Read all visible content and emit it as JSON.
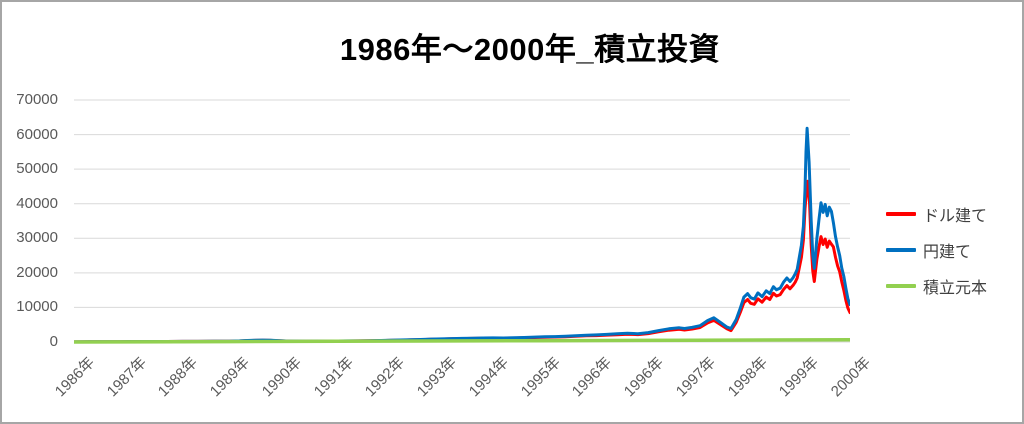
{
  "window": {
    "background": "#ffffff",
    "border_color": "#a6a6a6"
  },
  "chart_data": {
    "type": "line",
    "title": "1986年〜2000年_積立投資",
    "xlabel": "",
    "ylabel": "",
    "x_unit": "tick-index (0 = 1986年 ... 15 = 2000年)",
    "x_tick_labels": [
      "1986年",
      "1987年",
      "1988年",
      "1989年",
      "1990年",
      "1991年",
      "1992年",
      "1993年",
      "1994年",
      "1995年",
      "1996年",
      "1996年",
      "1997年",
      "1998年",
      "1999年",
      "2000年"
    ],
    "y_ticks": [
      0,
      10000,
      20000,
      30000,
      40000,
      50000,
      60000,
      70000
    ],
    "ylim": [
      0,
      70000
    ],
    "xlim": [
      0,
      15
    ],
    "grid": "horizontal",
    "legend_position": "right",
    "colors": {
      "grid": "#d9d9d9",
      "tick_text": "#595959",
      "legend_text": "#404040",
      "title_text": "#000000"
    },
    "series": [
      {
        "name": "ドル建て",
        "key": "usd",
        "color": "#ff0000",
        "stroke_width": 3,
        "points": [
          [
            0,
            35
          ],
          [
            0.3,
            55
          ],
          [
            0.6,
            75
          ],
          [
            0.9,
            95
          ],
          [
            1.2,
            112
          ],
          [
            1.5,
            130
          ],
          [
            1.8,
            145
          ],
          [
            2.1,
            160
          ],
          [
            2.4,
            172
          ],
          [
            2.7,
            190
          ],
          [
            3,
            218
          ],
          [
            3.2,
            295
          ],
          [
            3.35,
            400
          ],
          [
            3.5,
            465
          ],
          [
            3.65,
            500
          ],
          [
            3.8,
            455
          ],
          [
            3.95,
            380
          ],
          [
            4.1,
            280
          ],
          [
            4.3,
            238
          ],
          [
            4.5,
            220
          ],
          [
            4.7,
            248
          ],
          [
            4.9,
            228
          ],
          [
            5.1,
            262
          ],
          [
            5.3,
            285
          ],
          [
            5.5,
            308
          ],
          [
            5.7,
            340
          ],
          [
            5.9,
            395
          ],
          [
            6.1,
            465
          ],
          [
            6.3,
            525
          ],
          [
            6.5,
            600
          ],
          [
            6.7,
            675
          ],
          [
            6.9,
            768
          ],
          [
            7.1,
            842
          ],
          [
            7.3,
            915
          ],
          [
            7.5,
            975
          ],
          [
            7.7,
            1028
          ],
          [
            7.9,
            1068
          ],
          [
            8.1,
            1100
          ],
          [
            8.3,
            1068
          ],
          [
            8.5,
            1120
          ],
          [
            8.7,
            1212
          ],
          [
            8.9,
            1305
          ],
          [
            9.1,
            1398
          ],
          [
            9.3,
            1445
          ],
          [
            9.5,
            1538
          ],
          [
            9.7,
            1675
          ],
          [
            9.9,
            1815
          ],
          [
            10.1,
            1860
          ],
          [
            10.3,
            1990
          ],
          [
            10.5,
            2120
          ],
          [
            10.7,
            2250
          ],
          [
            10.9,
            2150
          ],
          [
            11.1,
            2430
          ],
          [
            11.3,
            2960
          ],
          [
            11.5,
            3400
          ],
          [
            11.7,
            3660
          ],
          [
            11.8,
            3480
          ],
          [
            11.95,
            3750
          ],
          [
            12.1,
            4200
          ],
          [
            12.25,
            5550
          ],
          [
            12.37,
            6250
          ],
          [
            12.5,
            5000
          ],
          [
            12.62,
            3820
          ],
          [
            12.7,
            3300
          ],
          [
            12.8,
            5700
          ],
          [
            12.88,
            8600
          ],
          [
            12.95,
            11400
          ],
          [
            13.02,
            12300
          ],
          [
            13.08,
            11200
          ],
          [
            13.15,
            10900
          ],
          [
            13.22,
            12500
          ],
          [
            13.3,
            11500
          ],
          [
            13.38,
            13000
          ],
          [
            13.45,
            12300
          ],
          [
            13.52,
            14100
          ],
          [
            13.58,
            13300
          ],
          [
            13.65,
            13700
          ],
          [
            13.72,
            15300
          ],
          [
            13.78,
            16300
          ],
          [
            13.84,
            15400
          ],
          [
            13.9,
            16400
          ],
          [
            13.94,
            17300
          ],
          [
            13.98,
            18500
          ],
          [
            14.02,
            21500
          ],
          [
            14.06,
            24500
          ],
          [
            14.1,
            29500
          ],
          [
            14.13,
            38500
          ],
          [
            14.16,
            44000
          ],
          [
            14.18,
            46500
          ],
          [
            14.22,
            40000
          ],
          [
            14.25,
            28000
          ],
          [
            14.28,
            20500
          ],
          [
            14.31,
            17500
          ],
          [
            14.36,
            24000
          ],
          [
            14.4,
            27500
          ],
          [
            14.44,
            30500
          ],
          [
            14.48,
            28200
          ],
          [
            14.52,
            29800
          ],
          [
            14.56,
            27400
          ],
          [
            14.6,
            29200
          ],
          [
            14.64,
            28300
          ],
          [
            14.68,
            27500
          ],
          [
            14.72,
            24500
          ],
          [
            14.76,
            22000
          ],
          [
            14.8,
            20300
          ],
          [
            14.84,
            17500
          ],
          [
            14.88,
            15000
          ],
          [
            14.92,
            12000
          ],
          [
            14.96,
            9800
          ],
          [
            15,
            8500
          ]
        ]
      },
      {
        "name": "円建て",
        "key": "jpy",
        "color": "#0070c0",
        "stroke_width": 3,
        "points": [
          [
            0,
            40
          ],
          [
            0.3,
            60
          ],
          [
            0.6,
            80
          ],
          [
            0.9,
            100
          ],
          [
            1.2,
            120
          ],
          [
            1.5,
            140
          ],
          [
            1.8,
            155
          ],
          [
            2.1,
            170
          ],
          [
            2.4,
            185
          ],
          [
            2.7,
            205
          ],
          [
            3,
            235
          ],
          [
            3.2,
            320
          ],
          [
            3.35,
            430
          ],
          [
            3.5,
            500
          ],
          [
            3.65,
            540
          ],
          [
            3.8,
            490
          ],
          [
            3.95,
            410
          ],
          [
            4.1,
            300
          ],
          [
            4.3,
            255
          ],
          [
            4.5,
            235
          ],
          [
            4.7,
            265
          ],
          [
            4.9,
            245
          ],
          [
            5.1,
            280
          ],
          [
            5.3,
            305
          ],
          [
            5.5,
            330
          ],
          [
            5.7,
            365
          ],
          [
            5.9,
            425
          ],
          [
            6.1,
            500
          ],
          [
            6.3,
            565
          ],
          [
            6.5,
            645
          ],
          [
            6.7,
            725
          ],
          [
            6.9,
            825
          ],
          [
            7.1,
            905
          ],
          [
            7.3,
            985
          ],
          [
            7.5,
            1050
          ],
          [
            7.7,
            1105
          ],
          [
            7.9,
            1150
          ],
          [
            8.1,
            1185
          ],
          [
            8.3,
            1150
          ],
          [
            8.5,
            1205
          ],
          [
            8.7,
            1305
          ],
          [
            8.9,
            1405
          ],
          [
            9.1,
            1505
          ],
          [
            9.3,
            1555
          ],
          [
            9.5,
            1655
          ],
          [
            9.7,
            1805
          ],
          [
            9.9,
            1955
          ],
          [
            10.1,
            2060
          ],
          [
            10.3,
            2210
          ],
          [
            10.5,
            2360
          ],
          [
            10.7,
            2510
          ],
          [
            10.9,
            2400
          ],
          [
            11.1,
            2710
          ],
          [
            11.3,
            3310
          ],
          [
            11.5,
            3810
          ],
          [
            11.7,
            4110
          ],
          [
            11.8,
            3910
          ],
          [
            11.95,
            4210
          ],
          [
            12.1,
            4710
          ],
          [
            12.25,
            6210
          ],
          [
            12.37,
            7000
          ],
          [
            12.5,
            5610
          ],
          [
            12.62,
            4310
          ],
          [
            12.7,
            3910
          ],
          [
            12.8,
            6510
          ],
          [
            12.88,
            9800
          ],
          [
            12.95,
            13000
          ],
          [
            13.02,
            14000
          ],
          [
            13.08,
            12800
          ],
          [
            13.15,
            12400
          ],
          [
            13.22,
            14200
          ],
          [
            13.3,
            13100
          ],
          [
            13.38,
            14800
          ],
          [
            13.45,
            14000
          ],
          [
            13.52,
            16000
          ],
          [
            13.58,
            15100
          ],
          [
            13.65,
            15600
          ],
          [
            13.72,
            17400
          ],
          [
            13.78,
            18500
          ],
          [
            13.84,
            17500
          ],
          [
            13.9,
            18600
          ],
          [
            13.94,
            19700
          ],
          [
            13.98,
            21000
          ],
          [
            14.02,
            24500
          ],
          [
            14.06,
            28000
          ],
          [
            14.1,
            33500
          ],
          [
            14.13,
            44000
          ],
          [
            14.15,
            55000
          ],
          [
            14.17,
            61800
          ],
          [
            14.21,
            52000
          ],
          [
            14.25,
            35000
          ],
          [
            14.28,
            25000
          ],
          [
            14.31,
            21300
          ],
          [
            14.36,
            30000
          ],
          [
            14.4,
            35500
          ],
          [
            14.44,
            40300
          ],
          [
            14.48,
            37500
          ],
          [
            14.52,
            39800
          ],
          [
            14.56,
            36500
          ],
          [
            14.6,
            39000
          ],
          [
            14.64,
            37800
          ],
          [
            14.68,
            34500
          ],
          [
            14.72,
            30500
          ],
          [
            14.76,
            27500
          ],
          [
            14.8,
            25000
          ],
          [
            14.84,
            21500
          ],
          [
            14.88,
            19000
          ],
          [
            14.92,
            15500
          ],
          [
            14.96,
            12500
          ],
          [
            15,
            10800
          ]
        ]
      },
      {
        "name": "積立元本",
        "key": "principal",
        "color": "#92d050",
        "stroke_width": 3.5,
        "points": [
          [
            0,
            0
          ],
          [
            3,
            130
          ],
          [
            6,
            260
          ],
          [
            9,
            390
          ],
          [
            12,
            520
          ],
          [
            15,
            650
          ]
        ]
      }
    ]
  }
}
